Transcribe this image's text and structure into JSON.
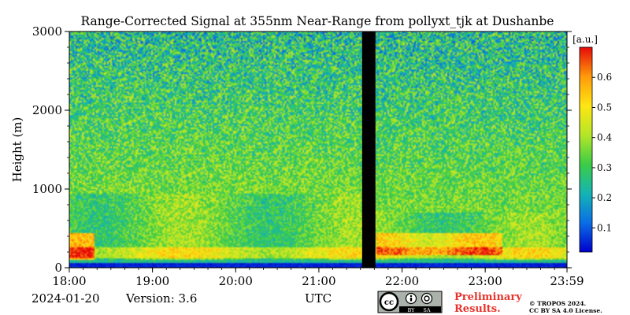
{
  "chart_data": {
    "type": "heatmap",
    "title": "Range-Corrected Signal at 355nm Near-Range from pollyxt_tjk at Dushanbe",
    "xlabel": "UTC",
    "ylabel": "Height (m)",
    "x_ticks": [
      "18:00",
      "19:00",
      "20:00",
      "21:00",
      "22:00",
      "23:00",
      "23:59"
    ],
    "x_range_hours": [
      18.0,
      23.983
    ],
    "y_ticks": [
      "0",
      "1000",
      "2000",
      "3000"
    ],
    "y_range_m": [
      0,
      3000
    ],
    "colorbar": {
      "unit": "[a.u.]",
      "range": [
        0.02,
        0.7
      ],
      "ticks": [
        "0.1",
        "0.2",
        "0.3",
        "0.4",
        "0.5",
        "0.6"
      ],
      "tick_values": [
        0.1,
        0.2,
        0.3,
        0.4,
        0.5,
        0.6
      ],
      "colormap": [
        "#0000cc",
        "#0a6ee6",
        "#14b4b4",
        "#3ccc46",
        "#b4e628",
        "#ffe614",
        "#ff9a0a",
        "#e60a0a"
      ]
    },
    "no_data_gap_hours": [
      21.52,
      21.68
    ],
    "signal_features": [
      {
        "feature": "aerosol layer top",
        "x_hours": [
          18.0,
          21.5
        ],
        "height_m": [
          900,
          950
        ]
      },
      {
        "feature": "strong near-surface signal",
        "x_hours": [
          18.0,
          18.3
        ],
        "height_m": [
          100,
          450
        ],
        "value": 0.6
      },
      {
        "feature": "elevated layer",
        "x_hours": [
          21.7,
          23.2
        ],
        "height_m": [
          150,
          450
        ],
        "value": 0.55
      }
    ]
  },
  "footer": {
    "date": "2024-01-20",
    "version": "Version: 3.6",
    "utc_label": "UTC",
    "preliminary_line1": "Preliminary",
    "preliminary_line2": "Results.",
    "copyright_line1": "© TROPOS 2024.",
    "copyright_line2": "CC BY SA 4.0 License.",
    "license_icon_labels": [
      "BY",
      "SA"
    ]
  }
}
